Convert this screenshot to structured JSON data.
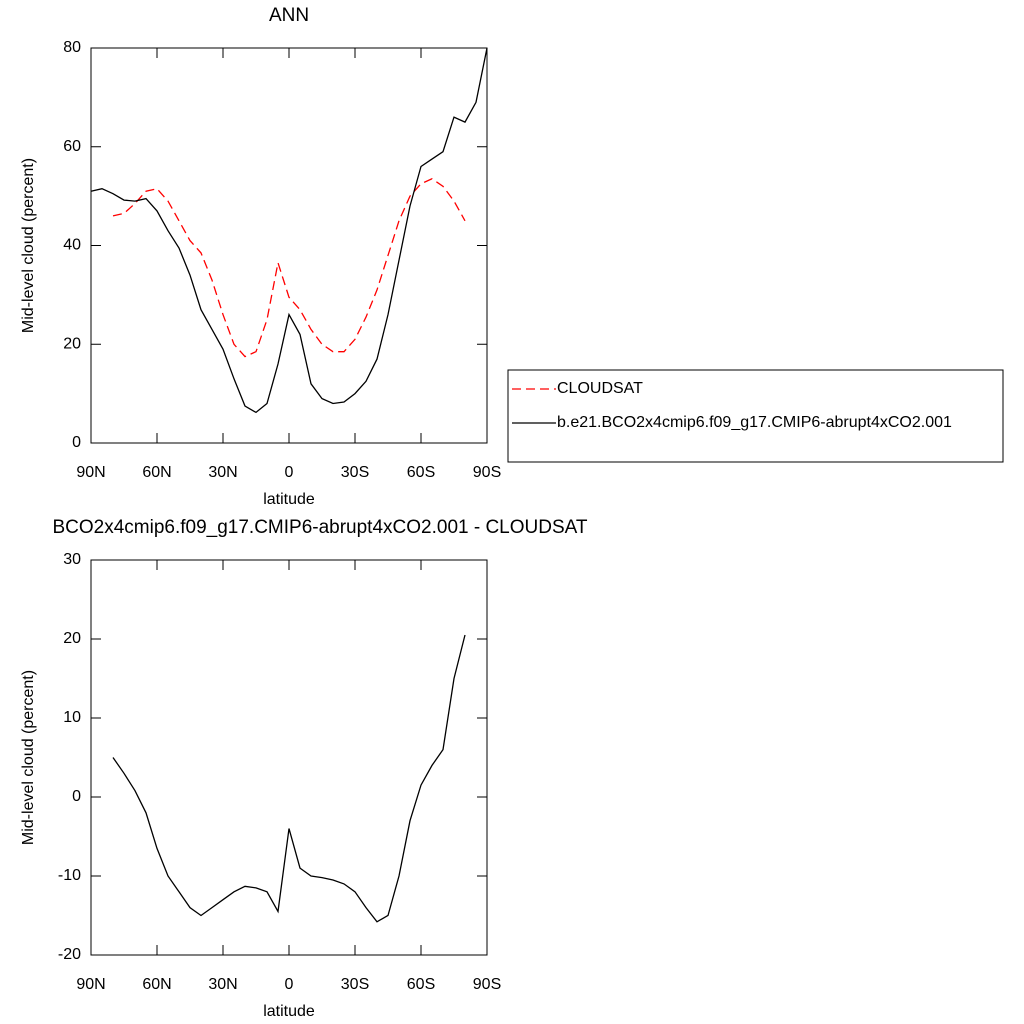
{
  "chart_data": [
    {
      "type": "line",
      "title": "ANN",
      "x_label": "latitude",
      "y_label": "Mid-level cloud (percent)",
      "xlim": [
        90,
        -90
      ],
      "ylim": [
        0,
        80
      ],
      "xticks": [
        {
          "value": 90,
          "label": "90N"
        },
        {
          "value": 60,
          "label": "60N"
        },
        {
          "value": 30,
          "label": "30N"
        },
        0,
        {
          "value": -30,
          "label": "30S"
        },
        {
          "value": -60,
          "label": "60S"
        },
        {
          "value": -90,
          "label": "90S"
        }
      ],
      "yticks": [
        0,
        20,
        40,
        60,
        80
      ],
      "legend": "right",
      "series": [
        {
          "name": "CLOUDSAT",
          "color": "#ff0000",
          "dash": true,
          "x": [
            80,
            75,
            70,
            65,
            60,
            55,
            50,
            45,
            40,
            35,
            30,
            25,
            20,
            15,
            10,
            5,
            0,
            -5,
            -10,
            -15,
            -20,
            -25,
            -30,
            -35,
            -40,
            -45,
            -50,
            -55,
            -60,
            -65,
            -70,
            -75,
            -80
          ],
          "values": [
            46,
            46.5,
            48.5,
            51,
            51.5,
            49,
            45,
            41,
            38.5,
            33,
            26,
            20,
            17.5,
            18.5,
            25,
            36.5,
            29.5,
            27,
            23,
            20,
            18.5,
            18.5,
            21,
            25.5,
            31,
            38,
            45,
            50,
            52.5,
            53.5,
            52,
            49,
            45
          ]
        },
        {
          "name": "b.e21.BCO2x4cmip6.f09_g17.CMIP6-abrupt4xCO2.001",
          "color": "#000000",
          "dash": false,
          "x": [
            90,
            85,
            80,
            75,
            70,
            65,
            60,
            55,
            50,
            45,
            40,
            35,
            30,
            25,
            20,
            15,
            10,
            5,
            0,
            -5,
            -10,
            -15,
            -20,
            -25,
            -30,
            -35,
            -40,
            -45,
            -50,
            -55,
            -60,
            -65,
            -70,
            -75,
            -80,
            -85,
            -90
          ],
          "values": [
            51,
            51.5,
            50.5,
            49.2,
            49,
            49.5,
            47,
            43,
            39.5,
            34,
            27,
            23,
            19,
            13,
            7.5,
            6.2,
            8,
            16,
            26,
            22,
            12,
            9,
            8,
            8.3,
            10,
            12.5,
            17,
            26,
            37,
            48,
            56,
            57.5,
            59,
            66,
            65,
            69,
            80
          ]
        }
      ]
    },
    {
      "type": "line",
      "title": "BCO2x4cmip6.f09_g17.CMIP6-abrupt4xCO2.001 - CLOUDSAT",
      "x_label": "latitude",
      "y_label": "Mid-level cloud (percent)",
      "xlim": [
        90,
        -90
      ],
      "ylim": [
        -20,
        30
      ],
      "xticks": [
        {
          "value": 90,
          "label": "90N"
        },
        {
          "value": 60,
          "label": "60N"
        },
        {
          "value": 30,
          "label": "30N"
        },
        0,
        {
          "value": -30,
          "label": "30S"
        },
        {
          "value": -60,
          "label": "60S"
        },
        {
          "value": -90,
          "label": "90S"
        }
      ],
      "yticks": [
        -20,
        -10,
        0,
        10,
        20,
        30
      ],
      "series": [
        {
          "color": "#000000",
          "dash": false,
          "x": [
            80,
            75,
            70,
            65,
            60,
            55,
            50,
            45,
            40,
            35,
            30,
            25,
            20,
            15,
            10,
            5,
            0,
            -5,
            -10,
            -15,
            -20,
            -25,
            -30,
            -35,
            -40,
            -45,
            -50,
            -55,
            -60,
            -65,
            -70,
            -75,
            -80
          ],
          "values": [
            5,
            3,
            0.8,
            -2,
            -6.5,
            -10,
            -12,
            -14,
            -15,
            -14,
            -13,
            -12,
            -11.3,
            -11.5,
            -12,
            -14.5,
            -4,
            -9,
            -10,
            -10.2,
            -10.5,
            -11,
            -12,
            -14,
            -15.8,
            -15,
            -10,
            -3,
            1.5,
            4,
            6,
            15,
            20.5
          ]
        }
      ]
    }
  ]
}
